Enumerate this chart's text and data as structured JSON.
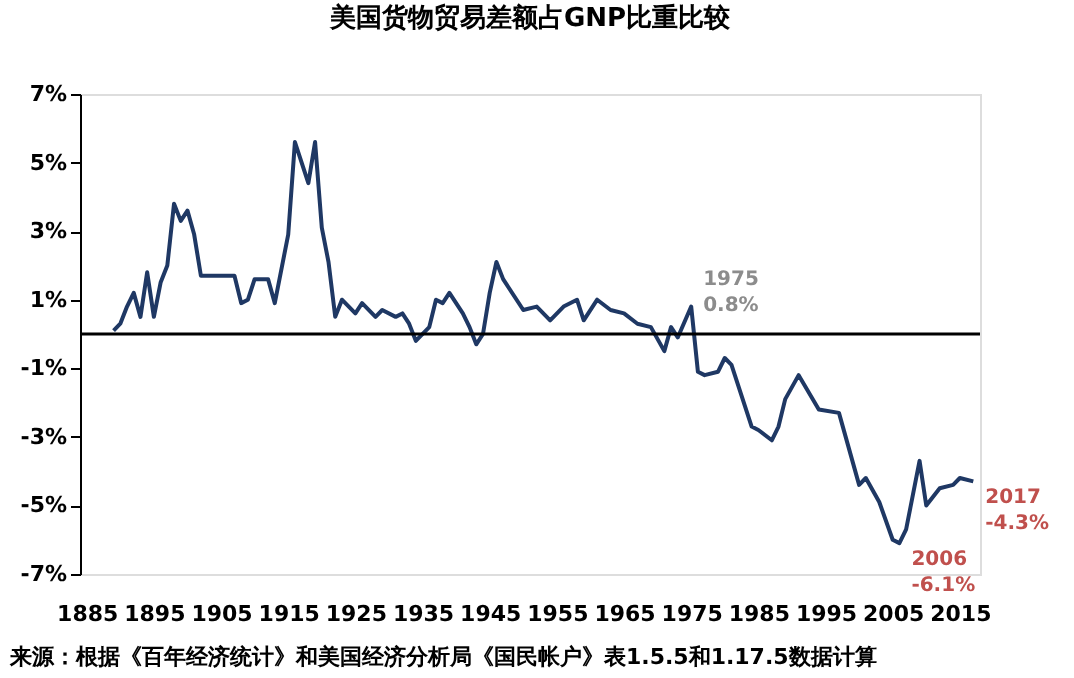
{
  "chart_data": {
    "type": "line",
    "title": "美国货物贸易差额占GNP比重比较",
    "x": [
      1889,
      1890,
      1891,
      1892,
      1893,
      1894,
      1895,
      1896,
      1897,
      1898,
      1899,
      1900,
      1901,
      1902,
      1904,
      1907,
      1908,
      1909,
      1910,
      1912,
      1913,
      1915,
      1916,
      1917,
      1918,
      1919,
      1920,
      1921,
      1922,
      1923,
      1925,
      1926,
      1928,
      1929,
      1931,
      1932,
      1933,
      1934,
      1936,
      1937,
      1938,
      1939,
      1941,
      1942,
      1943,
      1944,
      1945,
      1946,
      1947,
      1950,
      1952,
      1954,
      1956,
      1958,
      1959,
      1961,
      1963,
      1965,
      1967,
      1969,
      1971,
      1972,
      1973,
      1975,
      1976,
      1977,
      1979,
      1980,
      1981,
      1984,
      1985,
      1987,
      1988,
      1989,
      1991,
      1994,
      1997,
      2000,
      2001,
      2003,
      2005,
      2006,
      2007,
      2009,
      2010,
      2012,
      2014,
      2015,
      2017
    ],
    "series": [
      {
        "color": "#1f3864",
        "values": [
          0.1,
          0.3,
          0.8,
          1.2,
          0.5,
          1.8,
          0.5,
          1.5,
          2.0,
          3.8,
          3.3,
          3.6,
          2.9,
          1.7,
          1.7,
          1.7,
          0.9,
          1.0,
          1.6,
          1.6,
          0.9,
          2.9,
          5.6,
          5.0,
          4.4,
          5.6,
          3.1,
          2.1,
          0.5,
          1.0,
          0.6,
          0.9,
          0.5,
          0.7,
          0.5,
          0.6,
          0.3,
          -0.2,
          0.2,
          1.0,
          0.9,
          1.2,
          0.6,
          0.2,
          -0.3,
          0.0,
          1.2,
          2.1,
          1.6,
          0.7,
          0.8,
          0.4,
          0.8,
          1.0,
          0.4,
          1.0,
          0.7,
          0.6,
          0.3,
          0.2,
          -0.5,
          0.2,
          -0.1,
          0.8,
          -1.1,
          -1.2,
          -1.1,
          -0.7,
          -0.9,
          -2.7,
          -2.8,
          -3.1,
          -2.7,
          -1.9,
          -1.2,
          -2.2,
          -2.3,
          -4.4,
          -4.2,
          -4.9,
          -6.0,
          -6.1,
          -5.7,
          -3.7,
          -5.0,
          -4.5,
          -4.4,
          -4.2,
          -4.3
        ]
      }
    ],
    "xlim": [
      1884,
      2018
    ],
    "xticks": [
      1885,
      1895,
      1905,
      1915,
      1925,
      1935,
      1945,
      1955,
      1965,
      1975,
      1985,
      1995,
      2005,
      2015
    ],
    "ylim": [
      -7,
      7
    ],
    "yticks": [
      {
        "value": -7,
        "label": "-7%"
      },
      {
        "value": -5,
        "label": "-5%"
      },
      {
        "value": -3,
        "label": "-3%"
      },
      {
        "value": -1,
        "label": "-1%"
      },
      {
        "value": 1,
        "label": "1%"
      },
      {
        "value": 3,
        "label": "3%"
      },
      {
        "value": 5,
        "label": "5%"
      },
      {
        "value": 7,
        "label": "7%"
      }
    ],
    "ref_lines": [
      {
        "axis": "y",
        "value": 0,
        "color": "#000000"
      }
    ],
    "grid": false,
    "annotations": [
      {
        "text": "1975\n0.8%",
        "x": 1975,
        "y": 0.8
      },
      {
        "text": "2006\n-6.1%",
        "x": 2006,
        "y": -6.1
      },
      {
        "text": "2017\n-4.3%",
        "x": 2017,
        "y": -4.3
      },
      "来源：根据《百年经济统计》和美国经济分析局《国民帐户》表1.5.5和1.17.5数据计算"
    ]
  }
}
